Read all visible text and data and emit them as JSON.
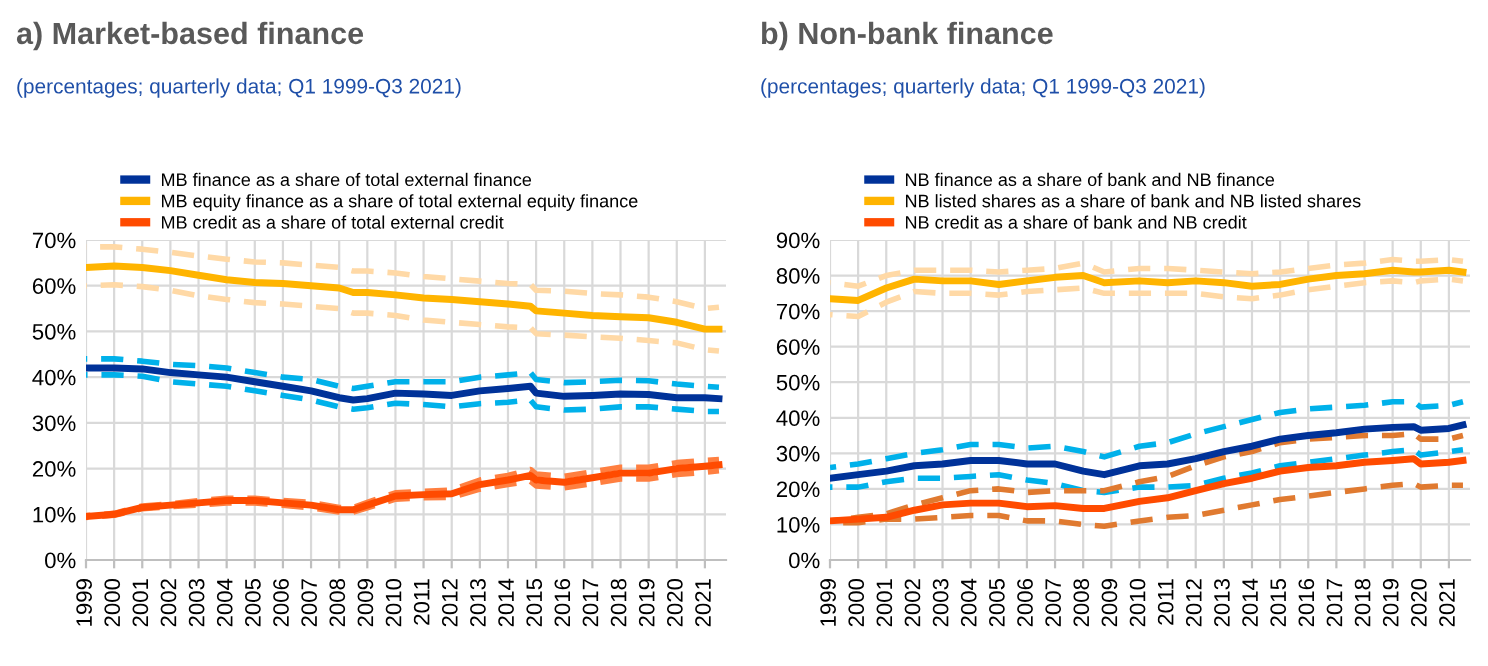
{
  "chart_data": [
    {
      "type": "line",
      "title": "a) Market-based finance",
      "subtitle": "(percentages; quarterly data; Q1 1999-Q3 2021)",
      "legend": "top",
      "grid": true,
      "marker": "none",
      "x": [
        1999,
        2000,
        2001,
        2002,
        2003,
        2004,
        2005,
        2006,
        2007,
        2008,
        2008.5,
        2009,
        2010,
        2011,
        2012,
        2013,
        2014,
        2014.8,
        2015,
        2016,
        2017,
        2018,
        2019,
        2020,
        2021,
        2021.5
      ],
      "xlim": [
        1999,
        2021.75
      ],
      "xticks": [
        1999,
        2000,
        2001,
        2002,
        2003,
        2004,
        2005,
        2006,
        2007,
        2008,
        2009,
        2010,
        2011,
        2012,
        2013,
        2014,
        2015,
        2016,
        2017,
        2018,
        2019,
        2020,
        2021
      ],
      "ylim": [
        0,
        70
      ],
      "yticks": [
        {
          "value": 0,
          "label": "0%"
        },
        {
          "value": 10,
          "label": "10%"
        },
        {
          "value": 20,
          "label": "20%"
        },
        {
          "value": 30,
          "label": "30%"
        },
        {
          "value": 40,
          "label": "40%"
        },
        {
          "value": 50,
          "label": "50%"
        },
        {
          "value": 60,
          "label": "60%"
        },
        {
          "value": 70,
          "label": "70%"
        }
      ],
      "series": [
        {
          "color": "#00b1ea",
          "line_style": "dashed",
          "values": [
            44,
            44,
            43.5,
            42.8,
            42.5,
            42,
            41,
            40,
            39.5,
            38,
            37.5,
            38,
            39,
            39,
            39,
            40,
            40.5,
            41,
            39.5,
            38.8,
            39,
            39.3,
            39.2,
            38.5,
            38,
            37.8
          ]
        },
        {
          "color": "#00b1ea",
          "line_style": "dashed",
          "values": [
            40.5,
            40.5,
            40.2,
            39,
            38.5,
            38,
            37,
            36,
            35,
            33.5,
            33,
            33.3,
            34.3,
            34,
            33.5,
            34.2,
            34.5,
            35,
            33.5,
            32.8,
            33,
            33.5,
            33.5,
            33,
            32.5,
            32.5
          ]
        },
        {
          "color": "#ffd9a6",
          "line_style": "dashed",
          "values": [
            68.5,
            68.5,
            68,
            67.3,
            66.5,
            65.8,
            65.2,
            65,
            64.5,
            64,
            63.2,
            63.2,
            62.8,
            62,
            61.5,
            61,
            60.5,
            60.3,
            59,
            58.8,
            58.3,
            58,
            57.5,
            56.5,
            55,
            55.3
          ]
        },
        {
          "color": "#ffd9a6",
          "line_style": "dashed",
          "values": [
            60,
            60.2,
            59.8,
            59,
            57.8,
            57,
            56.3,
            56,
            55.5,
            55,
            54,
            54,
            53.5,
            52.5,
            52,
            51.5,
            51,
            50.8,
            49.5,
            49.2,
            48.8,
            48.5,
            48,
            47.5,
            46,
            45.7
          ]
        },
        {
          "color": "#ff7f40",
          "line_style": "dashed",
          "values": [
            9.7,
            10.2,
            11.8,
            12.3,
            13,
            13.5,
            13.5,
            13,
            12.6,
            11.5,
            11.5,
            12.6,
            14.7,
            15,
            15.3,
            17.5,
            18.5,
            19.8,
            18.8,
            18.3,
            19.3,
            20.3,
            20.3,
            21.3,
            21.8,
            22
          ]
        },
        {
          "color": "#ff7f40",
          "line_style": "dashed",
          "values": [
            9.3,
            9.8,
            11.2,
            11.7,
            12,
            12.5,
            12.5,
            12,
            11.4,
            10.5,
            10.5,
            11.4,
            13.3,
            13.6,
            13.7,
            15.5,
            16.5,
            17.2,
            16.2,
            15.8,
            16.7,
            17.7,
            17.7,
            18.7,
            19.2,
            19.5
          ]
        },
        {
          "name": "MB finance as a share of total external finance",
          "color": "#003299",
          "line_style": "solid",
          "values": [
            42,
            42,
            41.8,
            41,
            40.5,
            40,
            39,
            38,
            37,
            35.5,
            35,
            35.3,
            36.5,
            36.3,
            36,
            37,
            37.5,
            38,
            36.5,
            35.8,
            36,
            36.3,
            36.2,
            35.5,
            35.5,
            35.3
          ]
        },
        {
          "name": "MB equity finance as a share of total external equity finance",
          "color": "#ffb400",
          "line_style": "solid",
          "values": [
            64,
            64.3,
            64,
            63.3,
            62.3,
            61.3,
            60.7,
            60.5,
            60,
            59.5,
            58.5,
            58.5,
            58,
            57.3,
            57,
            56.5,
            56,
            55.5,
            54.5,
            54,
            53.5,
            53.2,
            53,
            52,
            50.5,
            50.5
          ]
        },
        {
          "name": "MB credit as a share of total external credit",
          "color": "#ff4b00",
          "line_style": "solid",
          "values": [
            9.5,
            10,
            11.5,
            12,
            12.5,
            13,
            13,
            12.5,
            12,
            11,
            11,
            12,
            14,
            14.3,
            14.5,
            16.5,
            17.5,
            18.5,
            17.5,
            17,
            18,
            19,
            19,
            20,
            20.5,
            20.8
          ]
        }
      ]
    },
    {
      "type": "line",
      "title": "b) Non-bank finance",
      "subtitle": "(percentages; quarterly data; Q1 1999-Q3 2021)",
      "legend": "top",
      "grid": true,
      "marker": "none",
      "x": [
        1999,
        2000,
        2001,
        2002,
        2003,
        2004,
        2005,
        2006,
        2007,
        2008,
        2008.75,
        2010,
        2011,
        2012,
        2013,
        2014,
        2015,
        2016,
        2017,
        2018,
        2019,
        2019.75,
        2020,
        2021,
        2021.5
      ],
      "xlim": [
        1999,
        2021.75
      ],
      "xticks": [
        1999,
        2000,
        2001,
        2002,
        2003,
        2004,
        2005,
        2006,
        2007,
        2008,
        2009,
        2010,
        2011,
        2012,
        2013,
        2014,
        2015,
        2016,
        2017,
        2018,
        2019,
        2020,
        2021
      ],
      "ylim": [
        0,
        90
      ],
      "yticks": [
        {
          "value": 0,
          "label": "0%"
        },
        {
          "value": 10,
          "label": "10%"
        },
        {
          "value": 20,
          "label": "20%"
        },
        {
          "value": 30,
          "label": "30%"
        },
        {
          "value": 40,
          "label": "40%"
        },
        {
          "value": 50,
          "label": "50%"
        },
        {
          "value": 60,
          "label": "60%"
        },
        {
          "value": 70,
          "label": "70%"
        },
        {
          "value": 80,
          "label": "80%"
        },
        {
          "value": 90,
          "label": "90%"
        }
      ],
      "series": [
        {
          "color": "#ffd9a6",
          "line_style": "dashed",
          "values": [
            78,
            77,
            80,
            81.5,
            81.5,
            81.5,
            81,
            81.5,
            82,
            83.5,
            81,
            82,
            82,
            81.5,
            81,
            80.5,
            81,
            82,
            83,
            83.5,
            84.5,
            84,
            84,
            84.5,
            84
          ]
        },
        {
          "color": "#ffd9a6",
          "line_style": "dashed",
          "values": [
            69,
            68.5,
            72.5,
            75.5,
            75,
            75,
            74.5,
            75.5,
            76,
            76.5,
            75,
            75,
            75,
            75,
            74,
            73.5,
            74.5,
            76,
            77,
            78,
            78.5,
            78,
            78.5,
            79,
            78.5
          ]
        },
        {
          "color": "#00b1ea",
          "line_style": "dashed",
          "values": [
            26,
            27,
            28.5,
            30,
            31,
            32.5,
            32.5,
            31.5,
            32,
            30.5,
            29,
            32,
            33,
            35.5,
            37.5,
            39.5,
            41.5,
            42.5,
            43,
            43.5,
            44.5,
            44.5,
            43,
            43.5,
            44.5
          ]
        },
        {
          "color": "#00b1ea",
          "line_style": "dashed",
          "values": [
            20.5,
            20.5,
            22,
            23,
            23,
            23.5,
            24,
            22.5,
            21.5,
            19.5,
            19,
            20.5,
            20.5,
            21,
            23,
            24.5,
            26.5,
            27.5,
            28.5,
            29.5,
            30.5,
            31,
            29.5,
            30.5,
            31
          ]
        },
        {
          "color": "#e07a30",
          "line_style": "dashed",
          "values": [
            11,
            12,
            13,
            15.5,
            17.5,
            19.5,
            20,
            19,
            19.5,
            19.5,
            19.5,
            22,
            23.5,
            26.5,
            29,
            30.5,
            33,
            34,
            34.5,
            35,
            35,
            35.5,
            34,
            34,
            35
          ]
        },
        {
          "color": "#e07a30",
          "line_style": "dashed",
          "values": [
            10.5,
            10.5,
            11.5,
            11.5,
            12,
            12.5,
            12.5,
            11,
            11,
            10,
            9.5,
            11,
            12,
            12.5,
            14,
            15.5,
            17,
            18,
            19,
            20,
            21,
            21.5,
            20.5,
            21,
            21
          ]
        },
        {
          "name": "NB finance as a share of bank and NB finance",
          "color": "#003299",
          "line_style": "solid",
          "values": [
            23,
            24,
            25,
            26.5,
            27,
            28,
            28,
            27,
            27,
            25,
            24,
            26.5,
            27,
            28.5,
            30.5,
            32,
            34,
            35,
            35.8,
            36.8,
            37.3,
            37.5,
            36.5,
            37,
            38
          ]
        },
        {
          "name": "NB listed shares as a share of bank and NB listed shares",
          "color": "#ffb400",
          "line_style": "solid",
          "values": [
            73.5,
            73,
            76.5,
            79,
            78.5,
            78.5,
            77.5,
            78.5,
            79.5,
            80,
            78,
            78.5,
            78,
            78.5,
            78,
            77,
            77.5,
            79,
            80,
            80.5,
            81.5,
            81,
            81,
            81.5,
            81
          ]
        },
        {
          "name": "NB credit as a share of bank and NB credit",
          "color": "#ff4b00",
          "line_style": "solid",
          "values": [
            11,
            11.5,
            12,
            14,
            15.5,
            16,
            16,
            15,
            15.3,
            14.5,
            14.5,
            16.5,
            17.5,
            19.5,
            21.5,
            23,
            25,
            26,
            26.5,
            27.5,
            28,
            28.5,
            27,
            27.5,
            28
          ]
        }
      ]
    }
  ]
}
